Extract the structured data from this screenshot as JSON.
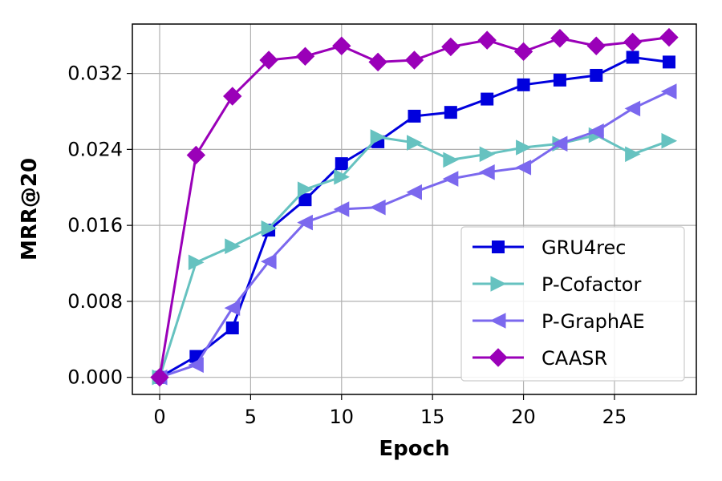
{
  "chart_data": {
    "type": "line",
    "xlabel": "Epoch",
    "ylabel": "MRR@20",
    "xlim": [
      -1.5,
      29.5
    ],
    "ylim": [
      -0.0018,
      0.0372
    ],
    "xticks": [
      0,
      5,
      10,
      15,
      20,
      25
    ],
    "xtick_labels": [
      "0",
      "5",
      "10",
      "15",
      "20",
      "25"
    ],
    "yticks": [
      0.0,
      0.008,
      0.016,
      0.024,
      0.032
    ],
    "ytick_labels": [
      "0.000",
      "0.008",
      "0.016",
      "0.024",
      "0.032"
    ],
    "grid": true,
    "legend_position": "lower-right",
    "x": [
      0,
      2,
      4,
      6,
      8,
      10,
      12,
      14,
      16,
      18,
      20,
      22,
      24,
      26,
      28
    ],
    "series": [
      {
        "name": "GRU4rec",
        "color": "#0000dd",
        "marker": "square",
        "values": [
          0.0,
          0.0022,
          0.0052,
          0.0155,
          0.0187,
          0.0225,
          0.0248,
          0.0275,
          0.0279,
          0.0293,
          0.0308,
          0.0313,
          0.0318,
          0.0337,
          0.0332
        ]
      },
      {
        "name": "P-Cofactor",
        "color": "#66c2c0",
        "marker": "triangle-right",
        "values": [
          0.0,
          0.0121,
          0.0138,
          0.0157,
          0.0198,
          0.0211,
          0.0253,
          0.0247,
          0.0229,
          0.0235,
          0.0242,
          0.0246,
          0.0255,
          0.0235,
          0.0249
        ]
      },
      {
        "name": "P-GraphAE",
        "color": "#7b68ee",
        "marker": "triangle-left",
        "values": [
          0.0,
          0.0013,
          0.0073,
          0.0122,
          0.0163,
          0.0177,
          0.0179,
          0.0195,
          0.0209,
          0.0216,
          0.0221,
          0.0246,
          0.0259,
          0.0283,
          0.0301
        ]
      },
      {
        "name": "CAASR",
        "color": "#9a00b8",
        "marker": "diamond",
        "values": [
          0.0,
          0.0234,
          0.0296,
          0.0334,
          0.0338,
          0.0349,
          0.0332,
          0.0334,
          0.0348,
          0.0355,
          0.0343,
          0.0357,
          0.0349,
          0.0353,
          0.0358
        ]
      }
    ]
  }
}
